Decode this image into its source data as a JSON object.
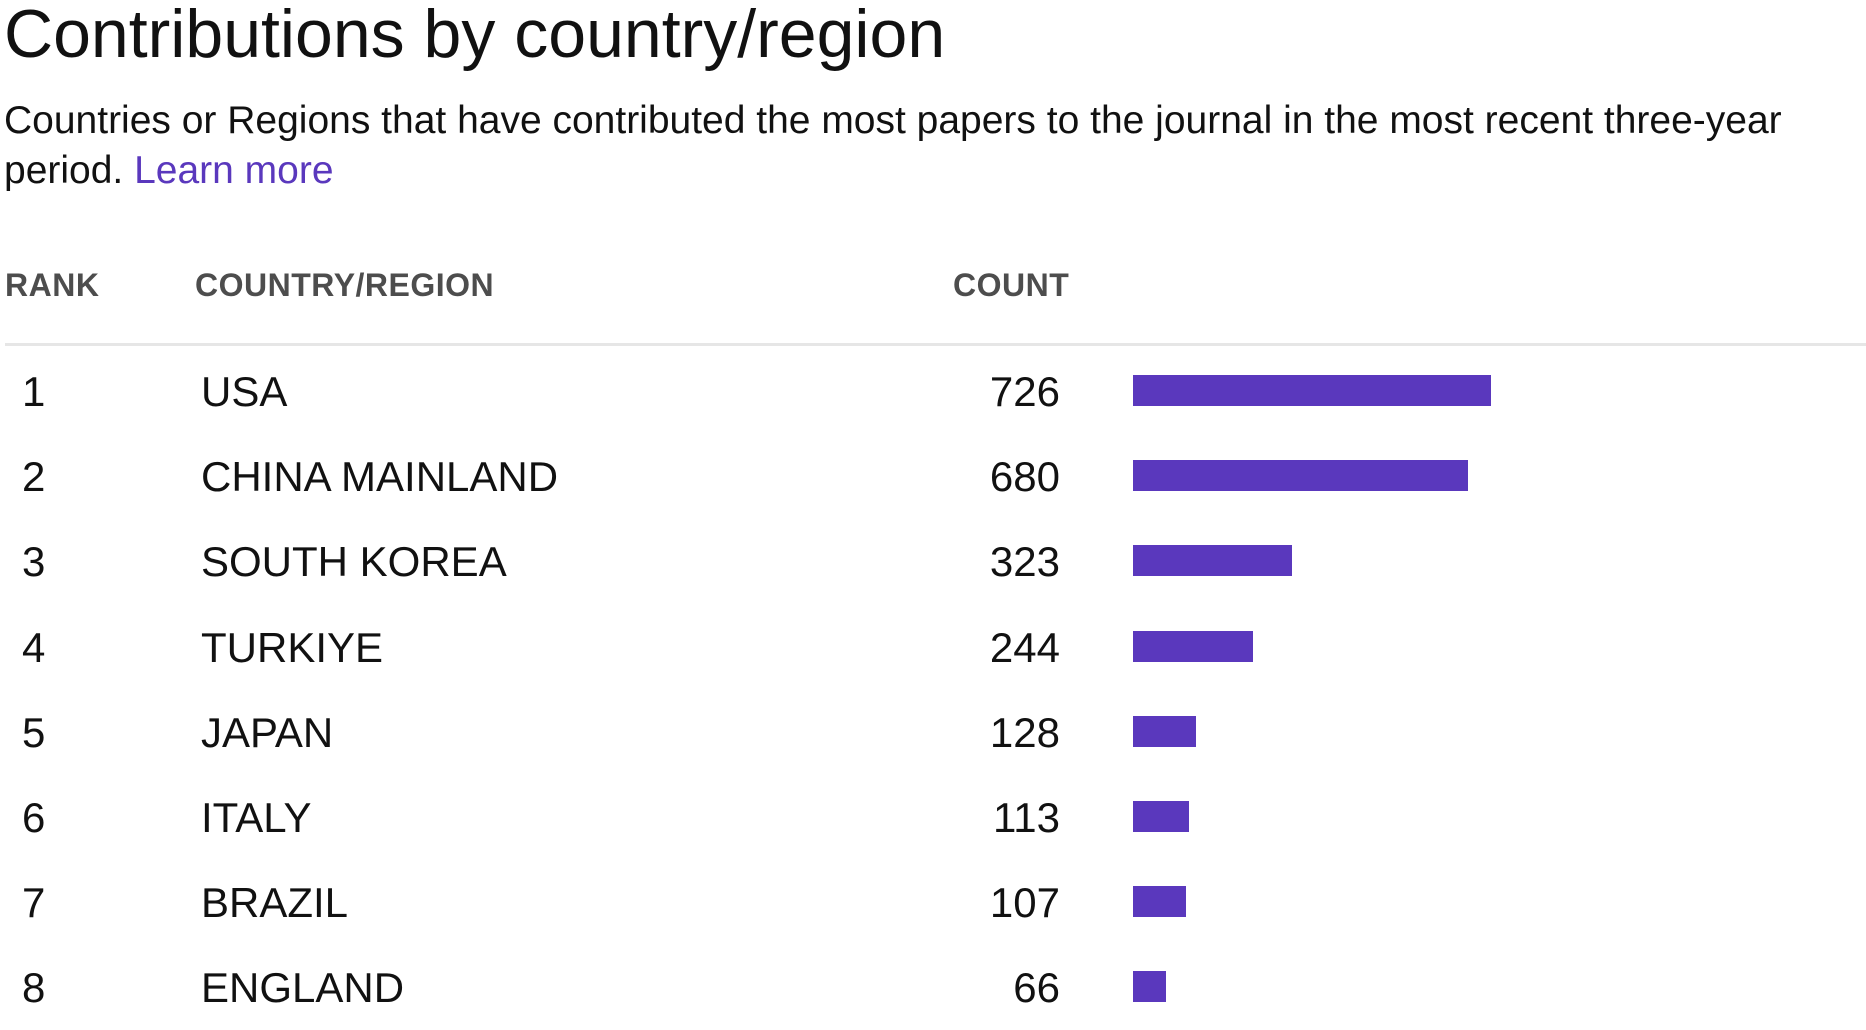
{
  "header": {
    "title": "Contributions by country/region",
    "subtitle": "Countries or Regions that have contributed the most papers to the journal in the most recent three-year period. ",
    "learn_more": "Learn more"
  },
  "colors": {
    "accent": "#5a38bd",
    "text": "#111111",
    "header_text": "#4d4d4d",
    "divider": "#e6e6e6"
  },
  "chart_data": {
    "type": "bar",
    "orientation": "horizontal",
    "title": "Contributions by country/region",
    "columns": [
      "RANK",
      "COUNTRY/REGION",
      "COUNT"
    ],
    "rows": [
      {
        "rank": "1",
        "country": "USA",
        "count": 726
      },
      {
        "rank": "2",
        "country": "CHINA MAINLAND",
        "count": 680
      },
      {
        "rank": "3",
        "country": "SOUTH KOREA",
        "count": 323
      },
      {
        "rank": "4",
        "country": "TURKIYE",
        "count": 244
      },
      {
        "rank": "5",
        "country": "JAPAN",
        "count": 128
      },
      {
        "rank": "6",
        "country": "ITALY",
        "count": 113
      },
      {
        "rank": "7",
        "country": "BRAZIL",
        "count": 107
      },
      {
        "rank": "8",
        "country": "ENGLAND",
        "count": 66
      }
    ],
    "xlim": [
      0,
      726
    ],
    "grid": false,
    "legend": "none"
  }
}
